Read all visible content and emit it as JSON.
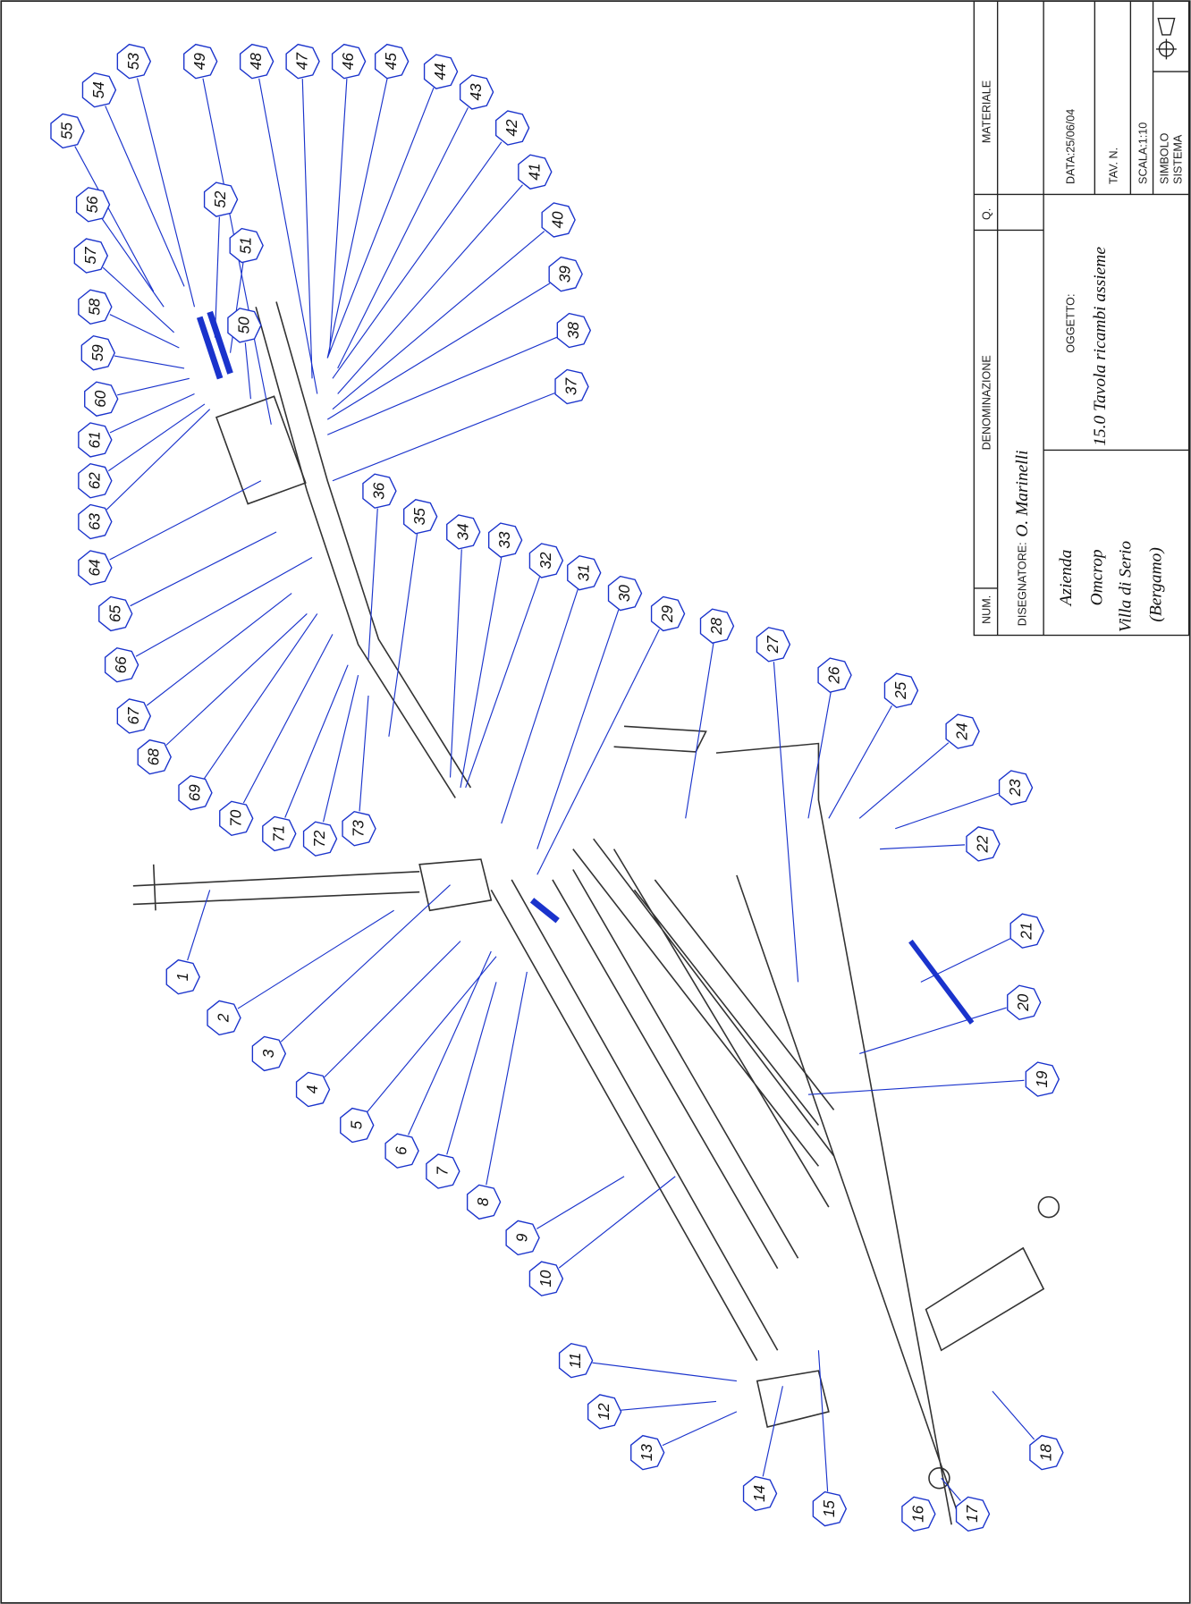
{
  "callouts": [
    "1",
    "2",
    "3",
    "4",
    "5",
    "6",
    "7",
    "8",
    "9",
    "10",
    "11",
    "12",
    "13",
    "14",
    "15",
    "16",
    "17",
    "18",
    "19",
    "20",
    "21",
    "22",
    "23",
    "24",
    "25",
    "26",
    "27",
    "28",
    "29",
    "30",
    "31",
    "32",
    "33",
    "34",
    "35",
    "36",
    "37",
    "38",
    "39",
    "40",
    "41",
    "42",
    "43",
    "44",
    "45",
    "46",
    "47",
    "48",
    "49",
    "50",
    "51",
    "52",
    "53",
    "54",
    "55",
    "56",
    "57",
    "58",
    "59",
    "60",
    "61",
    "62",
    "63",
    "64",
    "65",
    "66",
    "67",
    "68",
    "69",
    "70",
    "71",
    "72",
    "73"
  ],
  "title_block": {
    "num": "NUM.",
    "denominazione": "DENOMINAZIONE",
    "q": "Q.",
    "materiale": "MATERIALE",
    "disegnatore_label": "DISEGNATORE:",
    "disegnatore": "O. Marinelli",
    "azienda_label": "Azienda",
    "azienda": "Omcrop",
    "city": "Villa di Serio",
    "province": "(Bergamo)",
    "oggetto_label": "OGGETTO:",
    "oggetto": "15.0 Tavola ricambi assieme",
    "data": "DATA:25/06/04",
    "tav": "TAV. N.",
    "scala": "SCALA:1:10",
    "simbolo": "SIMBOLO",
    "sistema": "SISTEMA"
  }
}
